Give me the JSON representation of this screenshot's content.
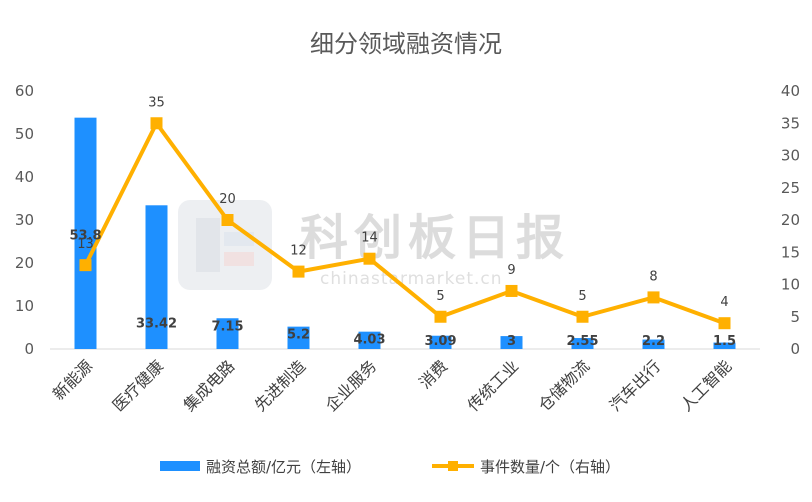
{
  "chart_data": {
    "type": "bar",
    "title": "细分领域融资情况",
    "categories": [
      "新能源",
      "医疗健康",
      "集成电路",
      "先进制造",
      "企业服务",
      "消费",
      "传统工业",
      "仓储物流",
      "汽车出行",
      "人工智能"
    ],
    "series": [
      {
        "name": "融资总额/亿元（左轴）",
        "type": "bar",
        "axis": "left",
        "color": "#1e90ff",
        "values": [
          53.8,
          33.42,
          7.15,
          5.2,
          4.03,
          3.09,
          3,
          2.55,
          2.2,
          1.5
        ],
        "labels": [
          "53.8",
          "33.42",
          "7.15",
          "5.2",
          "4.03",
          "3.09",
          "3",
          "2.55",
          "2.2",
          "1.5"
        ]
      },
      {
        "name": "事件数量/个（右轴）",
        "type": "line",
        "axis": "right",
        "color": "#ffb000",
        "values": [
          13,
          35,
          20,
          12,
          14,
          5,
          9,
          5,
          8,
          4
        ],
        "labels": [
          "13",
          "35",
          "20",
          "12",
          "14",
          "5",
          "9",
          "5",
          "8",
          "4"
        ]
      }
    ],
    "y_left": {
      "min": 0,
      "max": 60,
      "ticks": [
        "0",
        "10",
        "20",
        "30",
        "40",
        "50",
        "60"
      ]
    },
    "y_right": {
      "min": 0,
      "max": 40,
      "ticks": [
        "0",
        "5",
        "10",
        "15",
        "20",
        "25",
        "30",
        "35",
        "40"
      ]
    },
    "grid": false,
    "legend_position": "bottom"
  },
  "watermark": {
    "text": "科创板日报",
    "url": "chinastarmarket.cn"
  }
}
